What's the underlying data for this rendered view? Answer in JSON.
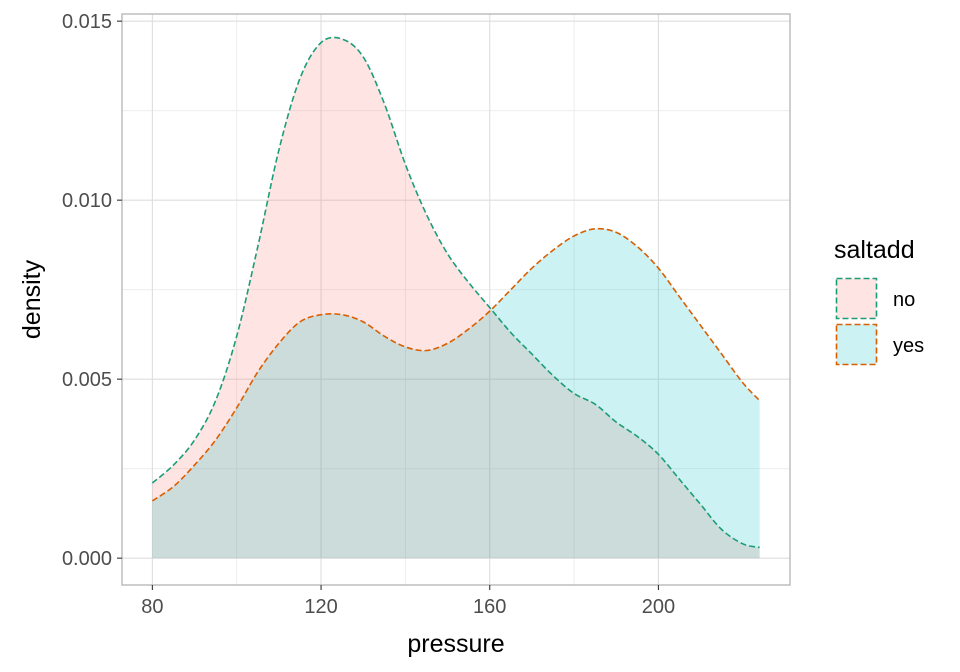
{
  "chart_data": {
    "type": "area",
    "xlabel": "pressure",
    "ylabel": "density",
    "xlim": [
      72.8,
      231.2
    ],
    "ylim": [
      -0.00075,
      0.0152
    ],
    "xticks": [
      80,
      120,
      160,
      200
    ],
    "yticks": [
      0.0,
      0.005,
      0.01,
      0.015
    ],
    "ytick_labels": [
      "0.000",
      "0.005",
      "0.010",
      "0.015"
    ],
    "grid": true,
    "legend": {
      "title": "saltadd",
      "position": "right"
    },
    "x": [
      80,
      85,
      90,
      95,
      100,
      105,
      110,
      115,
      120,
      125,
      130,
      135,
      140,
      145,
      150,
      155,
      160,
      165,
      170,
      175,
      180,
      185,
      190,
      195,
      200,
      205,
      210,
      215,
      220,
      224
    ],
    "series": [
      {
        "name": "no",
        "fill": "#F8766D",
        "outline": "#1B9E77",
        "values": [
          0.0021,
          0.0026,
          0.0033,
          0.0044,
          0.0062,
          0.0087,
          0.0114,
          0.0134,
          0.0144,
          0.0145,
          0.014,
          0.0127,
          0.011,
          0.0096,
          0.0085,
          0.0077,
          0.007,
          0.0063,
          0.0057,
          0.0051,
          0.0046,
          0.0043,
          0.0038,
          0.0034,
          0.0029,
          0.0022,
          0.0015,
          0.0008,
          0.0004,
          0.0003
        ]
      },
      {
        "name": "yes",
        "fill": "#00BFC4",
        "outline": "#D95F02",
        "values": [
          0.0016,
          0.002,
          0.0026,
          0.0033,
          0.0042,
          0.0052,
          0.006,
          0.0066,
          0.0068,
          0.0068,
          0.0066,
          0.0062,
          0.0059,
          0.0058,
          0.006,
          0.0064,
          0.0069,
          0.0075,
          0.0081,
          0.0086,
          0.009,
          0.0092,
          0.0091,
          0.0087,
          0.0081,
          0.0073,
          0.0065,
          0.0057,
          0.0049,
          0.0044
        ]
      }
    ]
  }
}
